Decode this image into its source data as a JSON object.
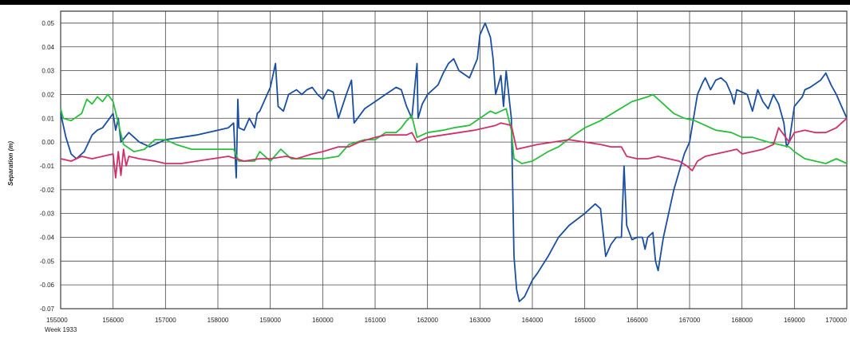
{
  "chart_data": {
    "type": "line",
    "ylabel": "Separation (m)",
    "xlabel": "",
    "week_label": "Week 1933",
    "xlim": [
      155000,
      170000
    ],
    "ylim": [
      -0.07,
      0.055
    ],
    "grid": true,
    "x_ticks": [
      155000,
      156000,
      157000,
      158000,
      159000,
      160000,
      161000,
      162000,
      163000,
      164000,
      165000,
      166000,
      167000,
      168000,
      169000,
      170000
    ],
    "y_ticks": [
      0.05,
      0.04,
      0.03,
      0.02,
      0.01,
      0.0,
      -0.01,
      -0.02,
      -0.03,
      -0.04,
      -0.05,
      -0.06,
      -0.07
    ],
    "y_tick_labels": [
      "0.05",
      "0.04",
      "0.03",
      "0.02",
      "0.01",
      "0.00",
      "-0.01",
      "-0.02",
      "-0.03",
      "-0.04",
      "-0.05",
      "-0.06",
      "-0.07"
    ],
    "x_tick_labels": [
      "155000",
      "156000",
      "157000",
      "158000",
      "159000",
      "160000",
      "161000",
      "162000",
      "163000",
      "164000",
      "165000",
      "166000",
      "167000",
      "168000",
      "169000",
      "170000"
    ],
    "series": [
      {
        "color": "#1a4fa0",
        "points": [
          [
            155000,
            0.012
          ],
          [
            155100,
            0.002
          ],
          [
            155200,
            -0.005
          ],
          [
            155300,
            -0.007
          ],
          [
            155450,
            -0.004
          ],
          [
            155600,
            0.003
          ],
          [
            155700,
            0.005
          ],
          [
            155800,
            0.006
          ],
          [
            155900,
            0.009
          ],
          [
            156000,
            0.012
          ],
          [
            156050,
            0.005
          ],
          [
            156100,
            0.01
          ],
          [
            156150,
            0.0
          ],
          [
            156300,
            0.004
          ],
          [
            156500,
            0.0
          ],
          [
            156700,
            -0.002
          ],
          [
            157000,
            0.001
          ],
          [
            157300,
            0.002
          ],
          [
            157600,
            0.003
          ],
          [
            158000,
            0.005
          ],
          [
            158200,
            0.006
          ],
          [
            158300,
            0.008
          ],
          [
            158350,
            -0.015
          ],
          [
            158380,
            0.018
          ],
          [
            158400,
            0.006
          ],
          [
            158500,
            0.005
          ],
          [
            158600,
            0.01
          ],
          [
            158700,
            0.006
          ],
          [
            158750,
            0.012
          ],
          [
            158800,
            0.013
          ],
          [
            158900,
            0.018
          ],
          [
            159000,
            0.023
          ],
          [
            159100,
            0.033
          ],
          [
            159150,
            0.015
          ],
          [
            159250,
            0.013
          ],
          [
            159350,
            0.02
          ],
          [
            159500,
            0.022
          ],
          [
            159600,
            0.02
          ],
          [
            159700,
            0.022
          ],
          [
            159800,
            0.023
          ],
          [
            159900,
            0.02
          ],
          [
            160000,
            0.018
          ],
          [
            160100,
            0.022
          ],
          [
            160200,
            0.021
          ],
          [
            160300,
            0.01
          ],
          [
            160450,
            0.02
          ],
          [
            160550,
            0.026
          ],
          [
            160600,
            0.008
          ],
          [
            160800,
            0.014
          ],
          [
            161000,
            0.017
          ],
          [
            161200,
            0.02
          ],
          [
            161400,
            0.023
          ],
          [
            161500,
            0.022
          ],
          [
            161600,
            0.015
          ],
          [
            161700,
            0.01
          ],
          [
            161800,
            0.033
          ],
          [
            161820,
            0.01
          ],
          [
            161900,
            0.016
          ],
          [
            162000,
            0.02
          ],
          [
            162200,
            0.024
          ],
          [
            162300,
            0.029
          ],
          [
            162400,
            0.033
          ],
          [
            162500,
            0.035
          ],
          [
            162600,
            0.03
          ],
          [
            162800,
            0.027
          ],
          [
            162950,
            0.035
          ],
          [
            163000,
            0.045
          ],
          [
            163100,
            0.05
          ],
          [
            163200,
            0.044
          ],
          [
            163250,
            0.035
          ],
          [
            163300,
            0.02
          ],
          [
            163400,
            0.028
          ],
          [
            163450,
            0.015
          ],
          [
            163500,
            0.03
          ],
          [
            163550,
            0.02
          ],
          [
            163600,
            0.01
          ],
          [
            163650,
            -0.048
          ],
          [
            163700,
            -0.062
          ],
          [
            163750,
            -0.067
          ],
          [
            163850,
            -0.065
          ],
          [
            164000,
            -0.058
          ],
          [
            164100,
            -0.055
          ],
          [
            164300,
            -0.048
          ],
          [
            164500,
            -0.04
          ],
          [
            164700,
            -0.035
          ],
          [
            165000,
            -0.03
          ],
          [
            165200,
            -0.026
          ],
          [
            165300,
            -0.028
          ],
          [
            165400,
            -0.048
          ],
          [
            165500,
            -0.043
          ],
          [
            165600,
            -0.04
          ],
          [
            165700,
            -0.04
          ],
          [
            165750,
            -0.01
          ],
          [
            165800,
            -0.035
          ],
          [
            165900,
            -0.041
          ],
          [
            166000,
            -0.04
          ],
          [
            166100,
            -0.04
          ],
          [
            166150,
            -0.045
          ],
          [
            166200,
            -0.04
          ],
          [
            166300,
            -0.038
          ],
          [
            166350,
            -0.05
          ],
          [
            166400,
            -0.054
          ],
          [
            166500,
            -0.04
          ],
          [
            166700,
            -0.02
          ],
          [
            166900,
            -0.005
          ],
          [
            167000,
            0.0
          ],
          [
            167150,
            0.02
          ],
          [
            167250,
            0.025
          ],
          [
            167300,
            0.027
          ],
          [
            167400,
            0.022
          ],
          [
            167500,
            0.026
          ],
          [
            167600,
            0.027
          ],
          [
            167700,
            0.025
          ],
          [
            167800,
            0.02
          ],
          [
            167850,
            0.016
          ],
          [
            167900,
            0.022
          ],
          [
            168100,
            0.02
          ],
          [
            168200,
            0.013
          ],
          [
            168300,
            0.022
          ],
          [
            168400,
            0.017
          ],
          [
            168500,
            0.014
          ],
          [
            168600,
            0.02
          ],
          [
            168700,
            0.016
          ],
          [
            168800,
            0.008
          ],
          [
            168850,
            -0.002
          ],
          [
            168900,
            0.0
          ],
          [
            169000,
            0.015
          ],
          [
            169150,
            0.019
          ],
          [
            169200,
            0.022
          ],
          [
            169300,
            0.023
          ],
          [
            169500,
            0.026
          ],
          [
            169600,
            0.029
          ],
          [
            169700,
            0.024
          ],
          [
            169800,
            0.02
          ],
          [
            169900,
            0.015
          ],
          [
            170000,
            0.01
          ]
        ]
      },
      {
        "color": "#2bbf3e",
        "points": [
          [
            155000,
            0.014
          ],
          [
            155050,
            0.01
          ],
          [
            155200,
            0.009
          ],
          [
            155400,
            0.012
          ],
          [
            155500,
            0.018
          ],
          [
            155600,
            0.016
          ],
          [
            155700,
            0.019
          ],
          [
            155800,
            0.017
          ],
          [
            155900,
            0.02
          ],
          [
            156000,
            0.017
          ],
          [
            156100,
            0.008
          ],
          [
            156200,
            -0.001
          ],
          [
            156400,
            -0.004
          ],
          [
            156600,
            -0.003
          ],
          [
            156800,
            0.001
          ],
          [
            157000,
            0.001
          ],
          [
            157200,
            -0.001
          ],
          [
            157500,
            -0.003
          ],
          [
            158000,
            -0.003
          ],
          [
            158300,
            -0.003
          ],
          [
            158400,
            -0.008
          ],
          [
            158700,
            -0.008
          ],
          [
            158800,
            -0.004
          ],
          [
            159000,
            -0.008
          ],
          [
            159200,
            -0.003
          ],
          [
            159400,
            -0.007
          ],
          [
            160000,
            -0.007
          ],
          [
            160300,
            -0.006
          ],
          [
            160500,
            -0.001
          ],
          [
            160800,
            0.001
          ],
          [
            161000,
            0.001
          ],
          [
            161200,
            0.004
          ],
          [
            161400,
            0.004
          ],
          [
            161500,
            0.006
          ],
          [
            161600,
            0.009
          ],
          [
            161700,
            0.011
          ],
          [
            161800,
            0.002
          ],
          [
            162000,
            0.004
          ],
          [
            162300,
            0.005
          ],
          [
            162500,
            0.006
          ],
          [
            162800,
            0.007
          ],
          [
            163000,
            0.01
          ],
          [
            163200,
            0.013
          ],
          [
            163300,
            0.012
          ],
          [
            163500,
            0.014
          ],
          [
            163600,
            0.005
          ],
          [
            163650,
            -0.007
          ],
          [
            163800,
            -0.009
          ],
          [
            164000,
            -0.008
          ],
          [
            164300,
            -0.004
          ],
          [
            164500,
            -0.002
          ],
          [
            164800,
            0.003
          ],
          [
            165000,
            0.006
          ],
          [
            165300,
            0.009
          ],
          [
            165600,
            0.013
          ],
          [
            165900,
            0.017
          ],
          [
            166200,
            0.019
          ],
          [
            166300,
            0.02
          ],
          [
            166500,
            0.016
          ],
          [
            166700,
            0.012
          ],
          [
            166900,
            0.01
          ],
          [
            167100,
            0.009
          ],
          [
            167300,
            0.007
          ],
          [
            167500,
            0.005
          ],
          [
            167800,
            0.004
          ],
          [
            168000,
            0.002
          ],
          [
            168200,
            0.002
          ],
          [
            168500,
            0.0
          ],
          [
            168700,
            -0.001
          ],
          [
            168900,
            -0.002
          ],
          [
            169000,
            -0.004
          ],
          [
            169200,
            -0.007
          ],
          [
            169400,
            -0.008
          ],
          [
            169600,
            -0.009
          ],
          [
            169800,
            -0.007
          ],
          [
            170000,
            -0.009
          ]
        ]
      },
      {
        "color": "#d0306a",
        "points": [
          [
            155000,
            -0.007
          ],
          [
            155200,
            -0.008
          ],
          [
            155400,
            -0.006
          ],
          [
            155600,
            -0.007
          ],
          [
            155800,
            -0.006
          ],
          [
            156000,
            -0.005
          ],
          [
            156050,
            -0.015
          ],
          [
            156100,
            -0.004
          ],
          [
            156150,
            -0.014
          ],
          [
            156200,
            -0.003
          ],
          [
            156250,
            -0.01
          ],
          [
            156300,
            -0.006
          ],
          [
            156500,
            -0.007
          ],
          [
            156800,
            -0.008
          ],
          [
            157000,
            -0.009
          ],
          [
            157300,
            -0.009
          ],
          [
            157600,
            -0.008
          ],
          [
            157900,
            -0.007
          ],
          [
            158200,
            -0.006
          ],
          [
            158500,
            -0.008
          ],
          [
            158800,
            -0.007
          ],
          [
            159000,
            -0.007
          ],
          [
            159300,
            -0.006
          ],
          [
            159500,
            -0.007
          ],
          [
            159800,
            -0.005
          ],
          [
            160000,
            -0.004
          ],
          [
            160300,
            -0.002
          ],
          [
            160500,
            -0.002
          ],
          [
            160700,
            0.0
          ],
          [
            161000,
            0.002
          ],
          [
            161200,
            0.003
          ],
          [
            161400,
            0.003
          ],
          [
            161600,
            0.003
          ],
          [
            161700,
            0.004
          ],
          [
            161800,
            0.0
          ],
          [
            162000,
            0.002
          ],
          [
            162300,
            0.003
          ],
          [
            162600,
            0.004
          ],
          [
            162900,
            0.005
          ],
          [
            163100,
            0.006
          ],
          [
            163300,
            0.007
          ],
          [
            163400,
            0.008
          ],
          [
            163600,
            0.007
          ],
          [
            163700,
            -0.003
          ],
          [
            163900,
            -0.002
          ],
          [
            164100,
            -0.001
          ],
          [
            164400,
            0.0
          ],
          [
            164700,
            0.001
          ],
          [
            165000,
            0.0
          ],
          [
            165300,
            -0.001
          ],
          [
            165500,
            -0.002
          ],
          [
            165700,
            -0.002
          ],
          [
            165800,
            -0.006
          ],
          [
            166000,
            -0.007
          ],
          [
            166200,
            -0.007
          ],
          [
            166400,
            -0.006
          ],
          [
            166600,
            -0.007
          ],
          [
            166800,
            -0.008
          ],
          [
            166950,
            -0.01
          ],
          [
            167050,
            -0.012
          ],
          [
            167150,
            -0.008
          ],
          [
            167300,
            -0.006
          ],
          [
            167500,
            -0.005
          ],
          [
            167700,
            -0.004
          ],
          [
            167900,
            -0.003
          ],
          [
            168000,
            -0.005
          ],
          [
            168200,
            -0.004
          ],
          [
            168400,
            -0.003
          ],
          [
            168600,
            -0.001
          ],
          [
            168700,
            0.006
          ],
          [
            168800,
            0.003
          ],
          [
            168900,
            0.0
          ],
          [
            169000,
            0.004
          ],
          [
            169200,
            0.005
          ],
          [
            169400,
            0.004
          ],
          [
            169600,
            0.004
          ],
          [
            169800,
            0.006
          ],
          [
            170000,
            0.01
          ]
        ]
      }
    ]
  }
}
